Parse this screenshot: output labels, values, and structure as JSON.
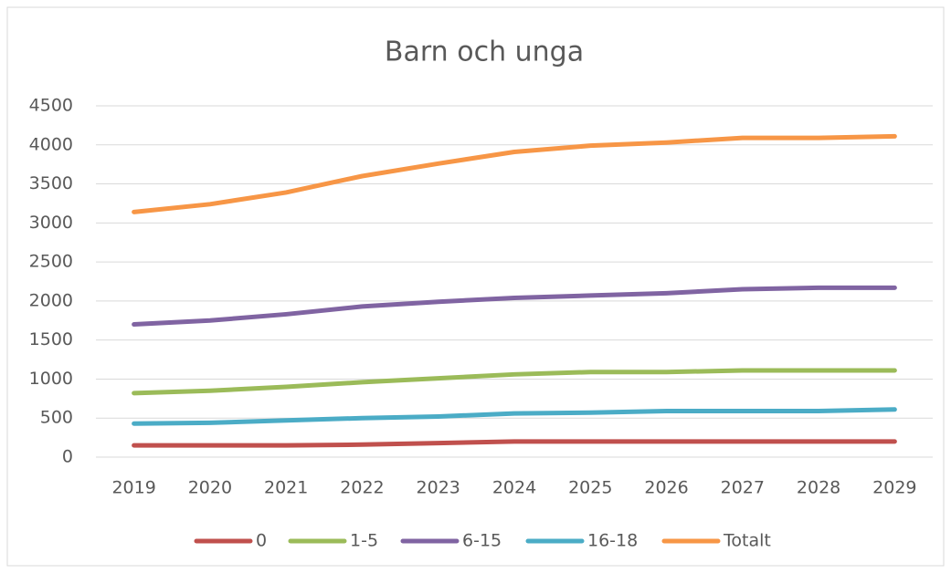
{
  "chart_data": {
    "type": "line",
    "title": "Barn och unga",
    "categories": [
      "2019",
      "2020",
      "2021",
      "2022",
      "2023",
      "2024",
      "2025",
      "2026",
      "2027",
      "2028",
      "2029"
    ],
    "series": [
      {
        "name": "0",
        "color": "#c0504d",
        "values": [
          150,
          150,
          150,
          160,
          180,
          200,
          200,
          200,
          200,
          200,
          200
        ]
      },
      {
        "name": "1-5",
        "color": "#9bbb59",
        "values": [
          820,
          850,
          900,
          960,
          1010,
          1060,
          1090,
          1090,
          1110,
          1110,
          1110
        ]
      },
      {
        "name": "6-15",
        "color": "#8064a2",
        "values": [
          1700,
          1750,
          1830,
          1930,
          1990,
          2040,
          2070,
          2100,
          2150,
          2170,
          2170
        ]
      },
      {
        "name": "16-18",
        "color": "#4bacc6",
        "values": [
          430,
          440,
          470,
          500,
          520,
          560,
          570,
          590,
          590,
          590,
          610
        ]
      },
      {
        "name": "Totalt",
        "color": "#f79646",
        "values": [
          3140,
          3240,
          3390,
          3600,
          3760,
          3910,
          3990,
          4030,
          4090,
          4090,
          4110
        ]
      }
    ],
    "ylim": [
      0,
      4500
    ],
    "yticks": [
      0,
      500,
      1000,
      1500,
      2000,
      2500,
      3000,
      3500,
      4000,
      4500
    ],
    "grid": true,
    "legend": "bottom"
  }
}
